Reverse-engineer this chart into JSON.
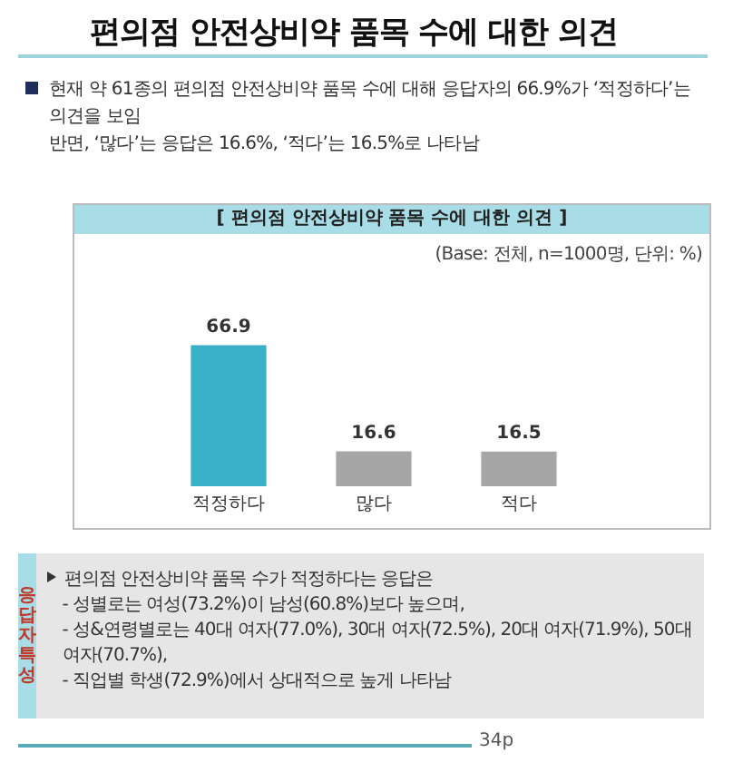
{
  "chart_data": {
    "type": "bar",
    "title": "편의점 안전상비약 품목 수에 대한 의견",
    "subtitle": "[ 편의점 안전상비약 품목 수에 대한 의견 ]",
    "categories": [
      "적정하다",
      "많다",
      "적다"
    ],
    "values": [
      66.9,
      16.6,
      16.5
    ],
    "colors": [
      "#3bb0c9",
      "#a6a6a6",
      "#a6a6a6"
    ],
    "data_labels": true,
    "grid": false,
    "legend": false,
    "annotations": [
      "현재 약 61종의 편의점 안전상비약 품목 수에 대해 응답자의 66.9%가 ‘적정하다’는 의견을 보임",
      "반면, ‘많다’는 응답은 16.6%, ‘적다’는 16.5%로 나타남",
      "(Base: 전체, n=1000명, 단위: %)",
      "응답자특성",
      "편의점 안전상비약 품목 수가 적정하다는 응답은",
      "- 성별로는 여성(73.2%)이 남성(60.8%)보다 높으며,",
      "- 성&연령별로는 40대 여자(77.0%), 30대 여자(72.5%), 20대 여자(71.9%), 50대 여자(70.7%),",
      "- 직업별 학생(72.9%)에서 상대적으로 높게 나타남",
      "34p"
    ]
  }
}
